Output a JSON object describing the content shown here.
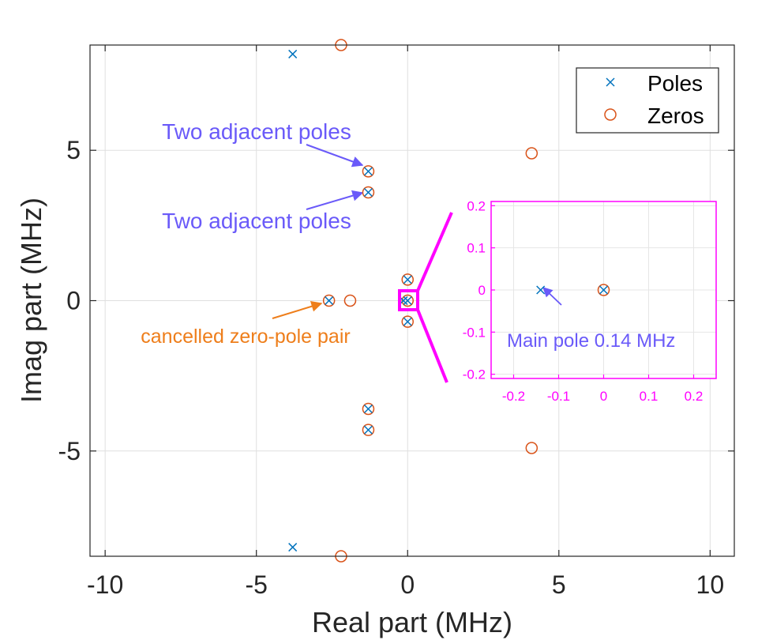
{
  "chart_data": {
    "type": "scatter",
    "xlabel": "Real part (MHz)",
    "ylabel": "Imag part (MHz)",
    "xlim": [
      -10.5,
      10.8
    ],
    "ylim": [
      -8.5,
      8.5
    ],
    "xticks": [
      -10,
      -5,
      0,
      5,
      10
    ],
    "yticks": [
      -5,
      0,
      5
    ],
    "grid": true,
    "legend_position": "top-right",
    "series": [
      {
        "name": "Poles",
        "marker": "x",
        "color": "#0072BD",
        "points": [
          [
            -3.8,
            8.2
          ],
          [
            -3.8,
            -8.2
          ],
          [
            -1.3,
            4.3
          ],
          [
            -1.3,
            -4.3
          ],
          [
            -1.3,
            3.6
          ],
          [
            -1.3,
            -3.6
          ],
          [
            -2.6,
            0
          ],
          [
            0,
            0.7
          ],
          [
            0,
            -0.7
          ],
          [
            -0.14,
            0
          ],
          [
            0,
            0
          ]
        ]
      },
      {
        "name": "Zeros",
        "marker": "o",
        "color": "#D95319",
        "points": [
          [
            -2.2,
            8.5
          ],
          [
            -2.2,
            -8.5
          ],
          [
            4.1,
            4.9
          ],
          [
            4.1,
            -4.9
          ],
          [
            -1.3,
            4.3
          ],
          [
            -1.3,
            -4.3
          ],
          [
            -1.3,
            3.6
          ],
          [
            -1.3,
            -3.6
          ],
          [
            -2.6,
            0
          ],
          [
            -1.9,
            0
          ],
          [
            0,
            0.7
          ],
          [
            0,
            -0.7
          ],
          [
            0,
            0
          ]
        ]
      }
    ],
    "annotations": [
      {
        "text": "Two adjacent poles",
        "color": "#6A5AF9"
      },
      {
        "text": "Two adjacent poles",
        "color": "#6A5AF9"
      },
      {
        "text": "cancelled zero-pole pair",
        "color": "#EE7E1B"
      }
    ],
    "inset": {
      "xlim": [
        -0.25,
        0.25
      ],
      "ylim": [
        -0.21,
        0.21
      ],
      "xticks": [
        -0.2,
        -0.1,
        0,
        0.1,
        0.2
      ],
      "yticks": [
        -0.2,
        -0.1,
        0,
        0.1,
        0.2
      ],
      "color": "#FF00FF",
      "poles": [
        [
          -0.14,
          0
        ],
        [
          0,
          0
        ]
      ],
      "zeros": [
        [
          0,
          0
        ]
      ],
      "annotation": {
        "text": "Main pole 0.14 MHz",
        "color": "#6A5AF9"
      }
    }
  }
}
